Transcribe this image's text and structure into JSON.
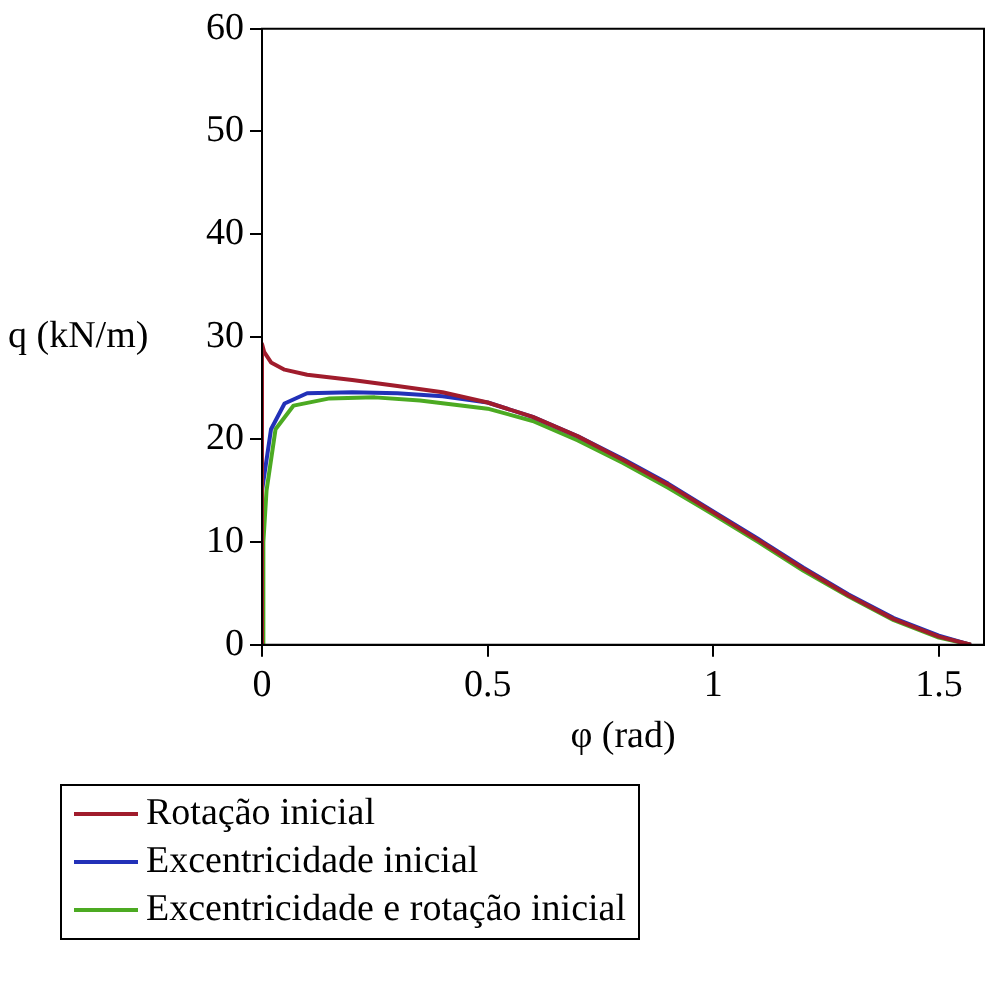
{
  "chart_data": {
    "type": "line",
    "xlabel": "φ (rad)",
    "ylabel": "q (kN/m)",
    "xlim": [
      0,
      1.6
    ],
    "xticks": [
      0,
      0.5,
      1,
      1.5
    ],
    "ylim": [
      0,
      60
    ],
    "yticks": [
      0,
      10,
      20,
      30,
      40,
      50,
      60
    ],
    "grid": false,
    "legend": "bottom",
    "marker": "none",
    "line_style": "solid",
    "series": [
      {
        "name": "Rotação inicial",
        "color": "#a01c2c",
        "x": [
          0,
          0,
          0.005,
          0.02,
          0.05,
          0.1,
          0.2,
          0.3,
          0.4,
          0.5,
          0.6,
          0.7,
          0.8,
          0.9,
          1.0,
          1.1,
          1.2,
          1.3,
          1.4,
          1.5,
          1.571
        ],
        "values": [
          0,
          29.3,
          28.5,
          27.5,
          26.8,
          26.3,
          25.8,
          25.2,
          24.6,
          23.6,
          22.2,
          20.3,
          18,
          15.6,
          12.9,
          10.2,
          7.4,
          4.8,
          2.5,
          0.8,
          0
        ]
      },
      {
        "name": "Excentricidade inicial",
        "color": "#2231b8",
        "x": [
          0,
          0,
          0.02,
          0.05,
          0.1,
          0.2,
          0.3,
          0.4,
          0.5,
          0.6,
          0.7,
          0.8,
          0.9,
          1.0,
          1.1,
          1.2,
          1.3,
          1.4,
          1.5,
          1.571
        ],
        "values": [
          0,
          15,
          21,
          23.5,
          24.5,
          24.6,
          24.5,
          24.2,
          23.6,
          22.2,
          20.3,
          18.1,
          15.7,
          13.0,
          10.3,
          7.5,
          4.9,
          2.6,
          0.9,
          0
        ]
      },
      {
        "name": "Excentricidade e rotação inicial",
        "color": "#4caa22",
        "x": [
          0,
          0.003,
          0.01,
          0.03,
          0.07,
          0.15,
          0.25,
          0.35,
          0.5,
          0.6,
          0.7,
          0.8,
          0.9,
          1.0,
          1.1,
          1.2,
          1.3,
          1.4,
          1.5,
          1.571
        ],
        "values": [
          0,
          10,
          15,
          21,
          23.3,
          24.0,
          24.1,
          23.8,
          23.0,
          21.8,
          19.9,
          17.7,
          15.3,
          12.7,
          10.0,
          7.2,
          4.7,
          2.4,
          0.7,
          0
        ]
      }
    ]
  }
}
